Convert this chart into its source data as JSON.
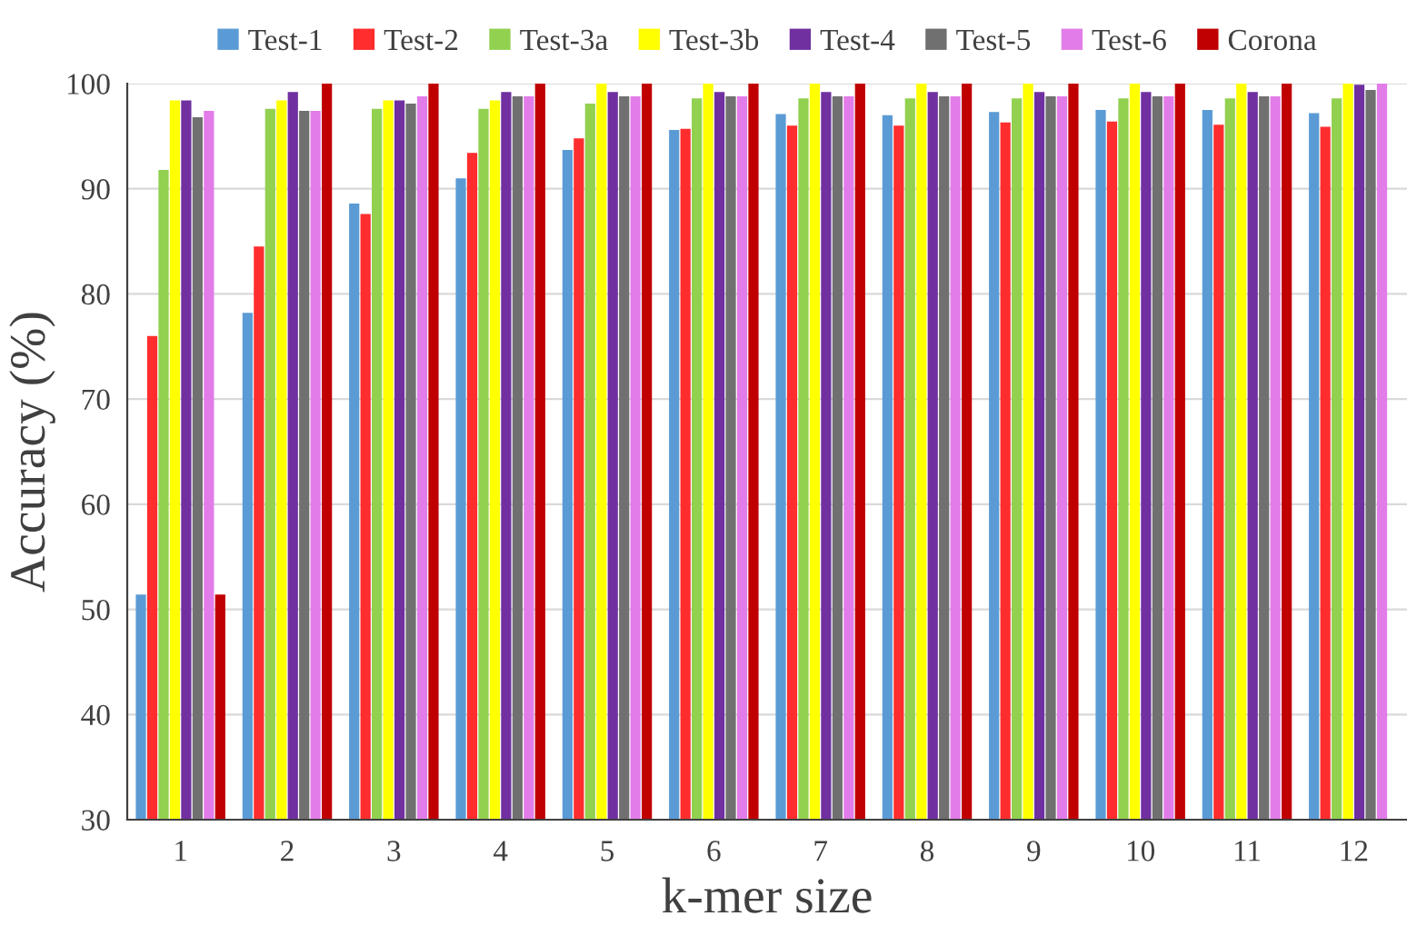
{
  "chart_data": {
    "type": "bar",
    "xlabel": "k-mer size",
    "ylabel": "Accuracy (%)",
    "categories": [
      "1",
      "2",
      "3",
      "4",
      "5",
      "6",
      "7",
      "8",
      "9",
      "10",
      "11",
      "12"
    ],
    "series": [
      {
        "name": "Test-1",
        "color": "#5b9bd5",
        "values": [
          51.4,
          78.2,
          88.6,
          91.0,
          93.7,
          95.6,
          97.1,
          97.0,
          97.3,
          97.5,
          97.5,
          97.2
        ]
      },
      {
        "name": "Test-2",
        "color": "#ff2d2d",
        "values": [
          76.0,
          84.5,
          87.6,
          93.4,
          94.8,
          95.7,
          96.0,
          96.0,
          96.3,
          96.4,
          96.1,
          95.9
        ]
      },
      {
        "name": "Test-3a",
        "color": "#92d050",
        "values": [
          91.8,
          97.6,
          97.6,
          97.6,
          98.1,
          98.6,
          98.6,
          98.6,
          98.6,
          98.6,
          98.6,
          98.6
        ]
      },
      {
        "name": "Test-3b",
        "color": "#ffff00",
        "values": [
          98.4,
          98.4,
          98.4,
          98.4,
          100,
          100,
          100,
          100,
          100,
          100,
          100,
          100
        ]
      },
      {
        "name": "Test-4",
        "color": "#7030a0",
        "values": [
          98.4,
          99.2,
          98.4,
          99.2,
          99.2,
          99.2,
          99.2,
          99.2,
          99.2,
          99.2,
          99.2,
          99.9
        ]
      },
      {
        "name": "Test-5",
        "color": "#707070",
        "values": [
          96.8,
          97.4,
          98.1,
          98.8,
          98.8,
          98.8,
          98.8,
          98.8,
          98.8,
          98.8,
          98.8,
          99.4
        ]
      },
      {
        "name": "Test-6",
        "color": "#e27ce8",
        "values": [
          97.4,
          97.4,
          98.8,
          98.8,
          98.8,
          98.8,
          98.8,
          98.8,
          98.8,
          98.8,
          98.8,
          100
        ]
      },
      {
        "name": "Corona",
        "color": "#c00000",
        "values": [
          51.4,
          100,
          100,
          100,
          100,
          100,
          100,
          100,
          100,
          100,
          100,
          null
        ]
      }
    ],
    "ylim": [
      30,
      100
    ],
    "yticks": [
      30,
      40,
      50,
      60,
      70,
      80,
      90,
      100
    ],
    "grid": "y",
    "legend": "top"
  }
}
